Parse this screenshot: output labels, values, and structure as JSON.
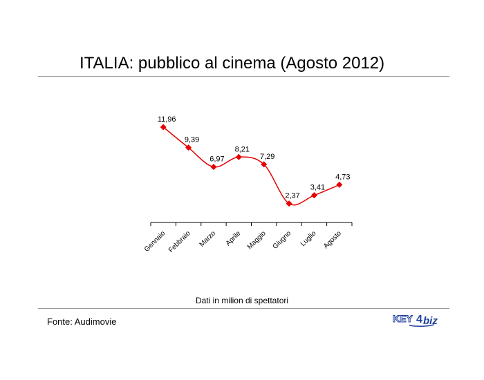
{
  "page": {
    "title": "ITALIA: pubblico al cinema (Agosto 2012)",
    "caption": "Dati in milion di spettatori",
    "source": "Fonte: Audimovie",
    "logo_text": "KEY4biz"
  },
  "colors": {
    "series": "#e60000",
    "rule": "#9a9a9a",
    "logo_blue": "#1f3fa0"
  },
  "chart_data": {
    "type": "line",
    "categories": [
      "Gennaio",
      "Febbraio",
      "Marzo",
      "Aprile",
      "Maggio",
      "Giugno",
      "Luglio",
      "Agosto"
    ],
    "series": [
      {
        "values": [
          11.96,
          9.39,
          6.97,
          8.21,
          7.29,
          2.37,
          3.41,
          4.73
        ],
        "labels": [
          "11,96",
          "9,39",
          "6,97",
          "8,21",
          "7,29",
          "2,37",
          "3,41",
          "4,73"
        ]
      }
    ],
    "title": "ITALIA: pubblico al cinema (Agosto 2012)",
    "xlabel": "",
    "ylabel": "",
    "ylim": [
      0,
      13
    ],
    "smoothed": true,
    "markers": "diamond",
    "grid": false
  }
}
